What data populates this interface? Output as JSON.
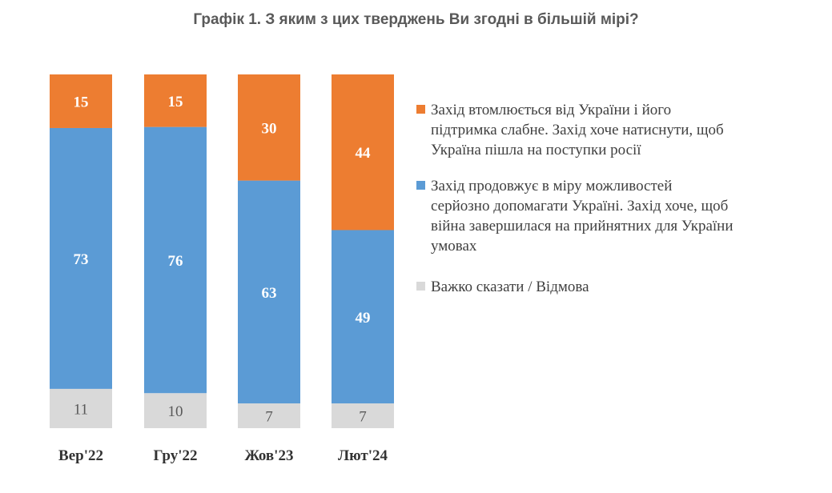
{
  "chart_data": {
    "type": "stacked-bar",
    "title": "Графік 1. З яким з цих тверджень Ви згодні в більшій мірі?",
    "categories": [
      "Вер'22",
      "Гру'22",
      "Жов'23",
      "Лют'24"
    ],
    "ylim": [
      0,
      100
    ],
    "series": [
      {
        "name": "Важко сказати / Відмова",
        "color": "#d9d9d9",
        "values": [
          11,
          10,
          7,
          7
        ]
      },
      {
        "name": "Захід продовжує в міру можливостей\nсерйозно допомагати Україні. Захід хоче, щоб\nвійна завершилася на прийнятних для України\nумовах",
        "color": "#5b9bd5",
        "values": [
          73,
          76,
          63,
          49
        ]
      },
      {
        "name": "Захід втомлюється від України і його\nпідтримка слабне. Захід хоче натиснути, щоб\nУкраїна пішла на поступки росії",
        "color": "#ed7d31",
        "values": [
          15,
          15,
          30,
          44
        ]
      }
    ],
    "legend_order": [
      2,
      1,
      0
    ],
    "legend_position": "right",
    "grid": false
  }
}
